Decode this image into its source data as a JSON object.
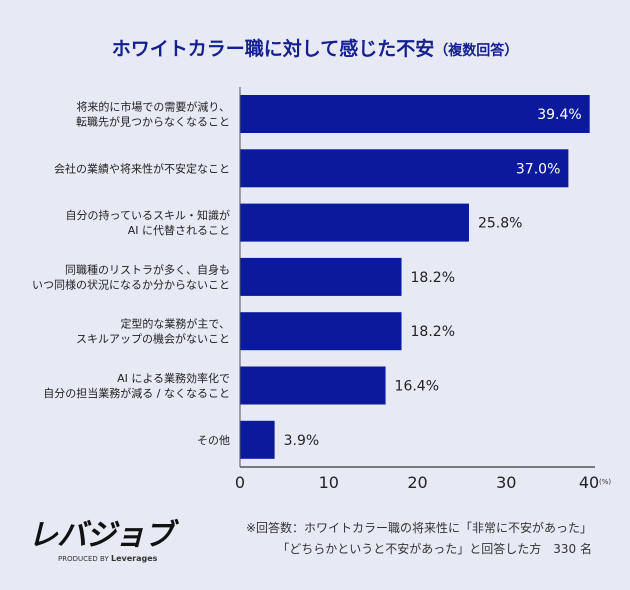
{
  "chart_data": {
    "type": "bar",
    "orientation": "horizontal",
    "title": "ホワイトカラー職に対して感じた不安",
    "subtitle": "（複数回答）",
    "categories": [
      [
        "将来的に市場での需要が減り、",
        "転職先が見つからなくなること"
      ],
      [
        "会社の業績や将来性が不安定なこと"
      ],
      [
        "自分の持っているスキル・知識が",
        "AI に代替されること"
      ],
      [
        "同職種のリストラが多く、自身も",
        "いつ同様の状況になるか分からないこと"
      ],
      [
        "定型的な業務が主で、",
        "スキルアップの機会がないこと"
      ],
      [
        "AI による業務効率化で",
        "自分の担当業務が減る / なくなること"
      ],
      [
        "その他"
      ]
    ],
    "values": [
      39.4,
      37.0,
      25.8,
      18.2,
      18.2,
      16.4,
      3.9
    ],
    "value_labels": [
      "39.4%",
      "37.0%",
      "25.8%",
      "18.2%",
      "18.2%",
      "16.4%",
      "3.9%"
    ],
    "xlim": [
      0,
      40
    ],
    "xticks": [
      "0",
      "10",
      "20",
      "30",
      "40"
    ],
    "xunit": "(%)",
    "grid": false,
    "bar_color": "#0b1a9c",
    "title_color": "#14208f",
    "background": "#e7e9f5"
  },
  "footer": {
    "logo": "レバジョブ",
    "produced_by": "PRODUCED BY",
    "brand": "Leverages",
    "note_line1": "※回答数：ホワイトカラー職の将来性に「非常に不安があった」",
    "note_line2": "「どちらかというと不安があった」と回答した方　330 名"
  }
}
